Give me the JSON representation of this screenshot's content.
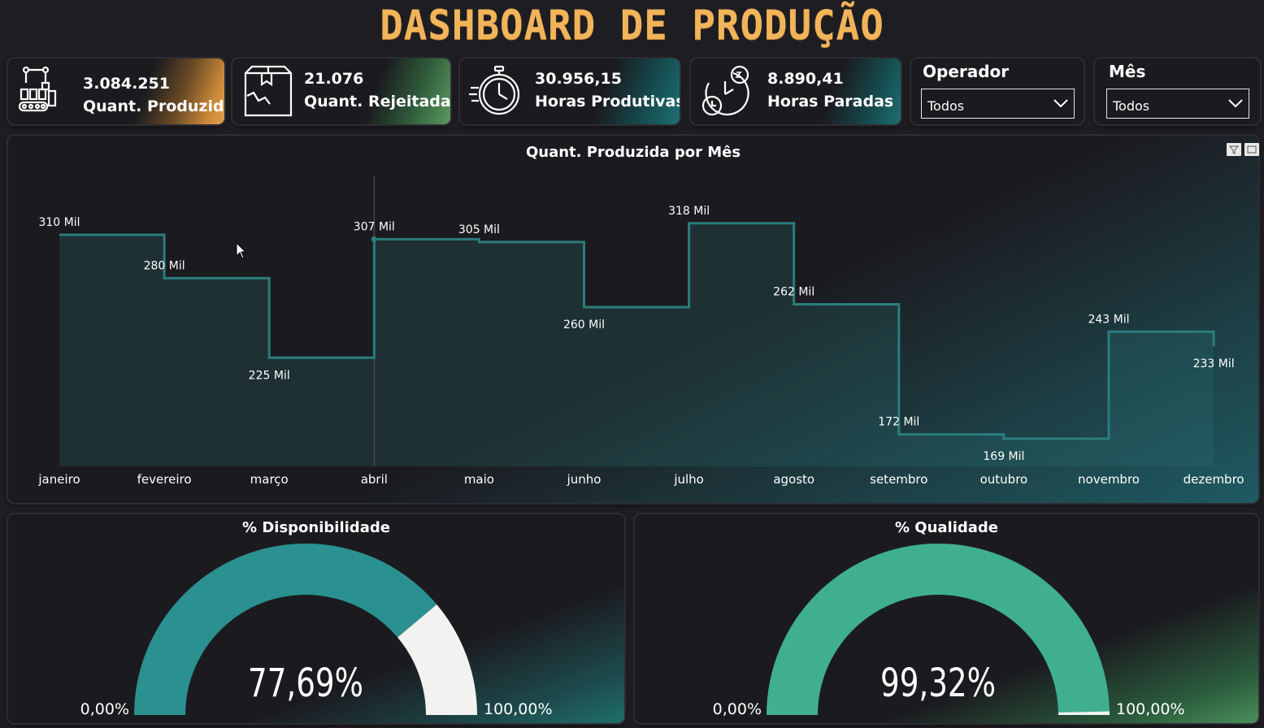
{
  "header": {
    "title": "DASHBOARD DE PRODUÇÃO"
  },
  "kpis": [
    {
      "value": "3.084.251",
      "label": "Quant. Produzida",
      "icon": "robot-arm-factory-icon",
      "accent": "#c9883a"
    },
    {
      "value": "21.076",
      "label": "Quant. Rejeitada",
      "icon": "damaged-box-icon",
      "accent": "#4f8f5a"
    },
    {
      "value": "30.956,15",
      "label": "Horas Produtivas",
      "icon": "stopwatch-icon",
      "accent": "#1f6f72"
    },
    {
      "value": "8.890,41",
      "label": "Horas Paradas",
      "icon": "sleeping-clock-icon",
      "accent": "#1f6f72"
    }
  ],
  "filters": {
    "operador": {
      "title": "Operador",
      "value": "Todos"
    },
    "mes": {
      "title": "Mês",
      "value": "Todos"
    }
  },
  "chart_data": {
    "type": "area",
    "title": "Quant. Produzida por Mês",
    "xlabel": "",
    "ylabel": "",
    "categories": [
      "janeiro",
      "fevereiro",
      "março",
      "abril",
      "maio",
      "junho",
      "julho",
      "agosto",
      "setembro",
      "outubro",
      "novembro",
      "dezembro"
    ],
    "values": [
      310,
      280,
      225,
      307,
      305,
      260,
      318,
      262,
      172,
      169,
      243,
      233
    ],
    "data_labels": [
      "310 Mil",
      "280 Mil",
      "225 Mil",
      "307 Mil",
      "305 Mil",
      "260 Mil",
      "318 Mil",
      "262 Mil",
      "172 Mil",
      "169 Mil",
      "243 Mil",
      "233 Mil"
    ],
    "label_side": [
      "above",
      "above",
      "below",
      "above",
      "above",
      "below",
      "above",
      "above",
      "above",
      "below",
      "above",
      "below"
    ],
    "unit": "Mil",
    "ylim": [
      0,
      400
    ],
    "step": true,
    "grid": false,
    "line_color": "#2a7d7c"
  },
  "gauges": [
    {
      "title": "% Disponibilidade",
      "value_label": "77,69%",
      "value": 77.69,
      "min_label": "0,00%",
      "max_label": "100,00%",
      "fill_color": "#2a9190",
      "rest_color": "#f2f2f0"
    },
    {
      "title": "% Qualidade",
      "value_label": "99,32%",
      "value": 99.32,
      "min_label": "0,00%",
      "max_label": "100,00%",
      "fill_color": "#3faf8f",
      "rest_color": "#f2f2f0"
    }
  ]
}
